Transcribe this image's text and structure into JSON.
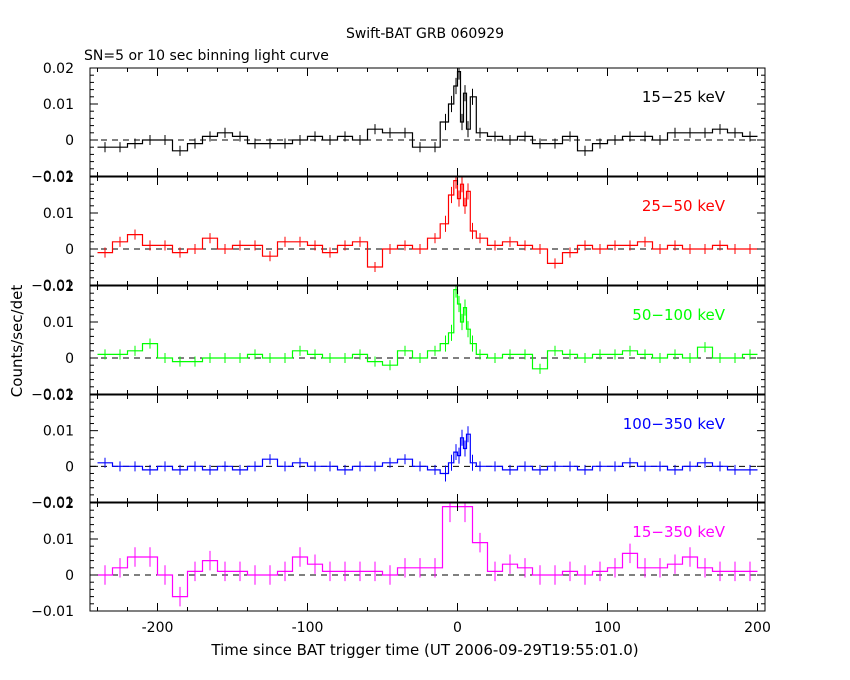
{
  "title": "Swift-BAT GRB 060929",
  "subtitle": "SN=5 or 10 sec binning light curve",
  "xlabel": "Time since BAT trigger time (UT 2006-09-29T19:55:01.0)",
  "ylabel": "Counts/sec/det",
  "colors": {
    "axes": "#000000",
    "15-25": "#000000",
    "25-50": "#ff0000",
    "50-100": "#00ff00",
    "100-350": "#0000ff",
    "15-350": "#ff00ff"
  },
  "chart_data": [
    {
      "type": "line",
      "style": "step-with-errorbars",
      "series_name": "15−25 keV",
      "xlim": [
        -245,
        205
      ],
      "ylim": [
        -0.01,
        0.02
      ],
      "x_ticks": [
        "-200",
        "-100",
        "0",
        "100",
        "200"
      ],
      "y_ticks": [
        "−0.01",
        "0",
        "0.01",
        "0.02"
      ],
      "baseline_dashed": 0,
      "x": [
        -235,
        -225,
        -215,
        -205,
        -195,
        -185,
        -175,
        -165,
        -155,
        -145,
        -135,
        -125,
        -115,
        -105,
        -95,
        -85,
        -75,
        -65,
        -55,
        -45,
        -35,
        -25,
        -15,
        -8,
        -4,
        -1,
        1,
        3,
        5,
        7,
        10,
        15,
        25,
        35,
        45,
        55,
        65,
        75,
        85,
        95,
        105,
        115,
        125,
        135,
        145,
        155,
        165,
        175,
        185,
        195
      ],
      "values": [
        -0.002,
        -0.002,
        -0.001,
        0.0,
        0.0,
        -0.003,
        -0.001,
        0.001,
        0.002,
        0.001,
        -0.001,
        -0.001,
        -0.001,
        0.0,
        0.001,
        0.0,
        0.001,
        0.0,
        0.003,
        0.002,
        0.002,
        -0.002,
        -0.002,
        0.005,
        0.01,
        0.015,
        0.019,
        0.005,
        0.013,
        0.003,
        0.012,
        0.002,
        0.001,
        0.0,
        0.001,
        -0.001,
        -0.001,
        0.001,
        -0.003,
        -0.001,
        0.0,
        0.001,
        0.001,
        0.0,
        0.002,
        0.002,
        0.002,
        0.003,
        0.002,
        0.001
      ]
    },
    {
      "type": "line",
      "style": "step-with-errorbars",
      "series_name": "25−50 keV",
      "xlim": [
        -245,
        205
      ],
      "ylim": [
        -0.01,
        0.02
      ],
      "x_ticks": [
        "-200",
        "-100",
        "0",
        "100",
        "200"
      ],
      "y_ticks": [
        "−0.01",
        "0",
        "0.01",
        "0.02"
      ],
      "baseline_dashed": 0,
      "x": [
        -235,
        -225,
        -215,
        -205,
        -195,
        -185,
        -175,
        -165,
        -155,
        -145,
        -135,
        -125,
        -115,
        -105,
        -95,
        -85,
        -75,
        -65,
        -55,
        -45,
        -35,
        -25,
        -15,
        -8,
        -4,
        -1,
        1,
        3,
        5,
        7,
        10,
        15,
        25,
        35,
        45,
        55,
        65,
        75,
        85,
        95,
        105,
        115,
        125,
        135,
        145,
        155,
        165,
        175,
        185,
        195
      ],
      "values": [
        -0.001,
        0.002,
        0.004,
        0.001,
        0.001,
        -0.001,
        0.0,
        0.003,
        0.0,
        0.001,
        0.001,
        -0.002,
        0.002,
        0.002,
        0.001,
        -0.001,
        0.001,
        0.002,
        -0.005,
        0.0,
        0.001,
        0.0,
        0.003,
        0.007,
        0.015,
        0.019,
        0.014,
        0.018,
        0.012,
        0.016,
        0.005,
        0.003,
        0.001,
        0.002,
        0.001,
        0.0,
        -0.004,
        -0.001,
        0.001,
        0.0,
        0.001,
        0.001,
        0.002,
        0.0,
        0.001,
        0.0,
        0.0,
        0.001,
        0.0,
        0.0
      ]
    },
    {
      "type": "line",
      "style": "step-with-errorbars",
      "series_name": "50−100 keV",
      "xlim": [
        -245,
        205
      ],
      "ylim": [
        -0.01,
        0.02
      ],
      "x_ticks": [
        "-200",
        "-100",
        "0",
        "100",
        "200"
      ],
      "y_ticks": [
        "−0.01",
        "0",
        "0.01",
        "0.02"
      ],
      "baseline_dashed": 0,
      "x": [
        -235,
        -225,
        -215,
        -205,
        -195,
        -185,
        -175,
        -165,
        -155,
        -145,
        -135,
        -125,
        -115,
        -105,
        -95,
        -85,
        -75,
        -65,
        -55,
        -45,
        -35,
        -25,
        -15,
        -8,
        -4,
        -1,
        1,
        3,
        5,
        7,
        10,
        15,
        25,
        35,
        45,
        55,
        65,
        75,
        85,
        95,
        105,
        115,
        125,
        135,
        145,
        155,
        165,
        175,
        185,
        195
      ],
      "values": [
        0.001,
        0.001,
        0.002,
        0.004,
        0.0,
        -0.001,
        -0.001,
        0.0,
        0.0,
        0.0,
        0.001,
        0.0,
        0.0,
        0.002,
        0.001,
        0.0,
        0.0,
        0.001,
        -0.001,
        -0.002,
        0.002,
        0.0,
        0.002,
        0.004,
        0.007,
        0.019,
        0.015,
        0.01,
        0.014,
        0.008,
        0.004,
        0.001,
        0.0,
        0.001,
        0.001,
        -0.003,
        0.002,
        0.001,
        0.0,
        0.001,
        0.001,
        0.002,
        0.001,
        0.0,
        0.001,
        0.0,
        0.003,
        0.0,
        0.0,
        0.001
      ]
    },
    {
      "type": "line",
      "style": "step-with-errorbars",
      "series_name": "100−350 keV",
      "xlim": [
        -245,
        205
      ],
      "ylim": [
        -0.01,
        0.02
      ],
      "x_ticks": [
        "-200",
        "-100",
        "0",
        "100",
        "200"
      ],
      "y_ticks": [
        "−0.01",
        "0",
        "0.01",
        "0.02"
      ],
      "baseline_dashed": 0,
      "x": [
        -235,
        -225,
        -215,
        -205,
        -195,
        -185,
        -175,
        -165,
        -155,
        -145,
        -135,
        -125,
        -115,
        -105,
        -95,
        -85,
        -75,
        -65,
        -55,
        -45,
        -35,
        -25,
        -15,
        -8,
        -4,
        -1,
        1,
        3,
        5,
        7,
        10,
        15,
        25,
        35,
        45,
        55,
        65,
        75,
        85,
        95,
        105,
        115,
        125,
        135,
        145,
        155,
        165,
        175,
        185,
        195
      ],
      "values": [
        0.001,
        0.0,
        0.0,
        -0.001,
        0.0,
        -0.001,
        0.0,
        -0.001,
        0.0,
        -0.001,
        0.0,
        0.002,
        0.0,
        0.001,
        0.0,
        0.0,
        -0.001,
        0.0,
        0.0,
        0.001,
        0.002,
        0.0,
        -0.001,
        -0.002,
        0.001,
        0.004,
        0.003,
        0.008,
        0.005,
        0.009,
        0.001,
        0.0,
        0.0,
        -0.001,
        0.0,
        -0.001,
        0.0,
        0.0,
        -0.001,
        0.0,
        0.0,
        0.001,
        0.0,
        0.0,
        -0.001,
        0.0,
        0.001,
        0.0,
        -0.001,
        -0.001
      ]
    },
    {
      "type": "line",
      "style": "step-with-errorbars",
      "series_name": "15−350 keV",
      "xlim": [
        -245,
        205
      ],
      "ylim": [
        -0.01,
        0.02
      ],
      "x_ticks": [
        "-200",
        "-100",
        "0",
        "100",
        "200"
      ],
      "y_ticks": [
        "−0.01",
        "0",
        "0.01",
        "0.02"
      ],
      "baseline_dashed": 0,
      "x": [
        -235,
        -225,
        -215,
        -205,
        -195,
        -185,
        -175,
        -165,
        -155,
        -145,
        -135,
        -125,
        -115,
        -105,
        -95,
        -85,
        -75,
        -65,
        -55,
        -45,
        -35,
        -25,
        -15,
        -5,
        5,
        15,
        25,
        35,
        45,
        55,
        65,
        75,
        85,
        95,
        105,
        115,
        125,
        135,
        145,
        155,
        165,
        175,
        185,
        195
      ],
      "values": [
        0.0,
        0.002,
        0.005,
        0.005,
        0.0,
        -0.006,
        0.001,
        0.004,
        0.001,
        0.001,
        0.0,
        0.0,
        0.001,
        0.005,
        0.003,
        0.001,
        0.001,
        0.001,
        0.001,
        0.0,
        0.002,
        0.002,
        0.002,
        0.019,
        0.019,
        0.009,
        0.001,
        0.003,
        0.002,
        0.0,
        0.0,
        0.001,
        0.0,
        0.001,
        0.002,
        0.006,
        0.002,
        0.002,
        0.003,
        0.005,
        0.002,
        0.001,
        0.001,
        0.001
      ]
    }
  ]
}
